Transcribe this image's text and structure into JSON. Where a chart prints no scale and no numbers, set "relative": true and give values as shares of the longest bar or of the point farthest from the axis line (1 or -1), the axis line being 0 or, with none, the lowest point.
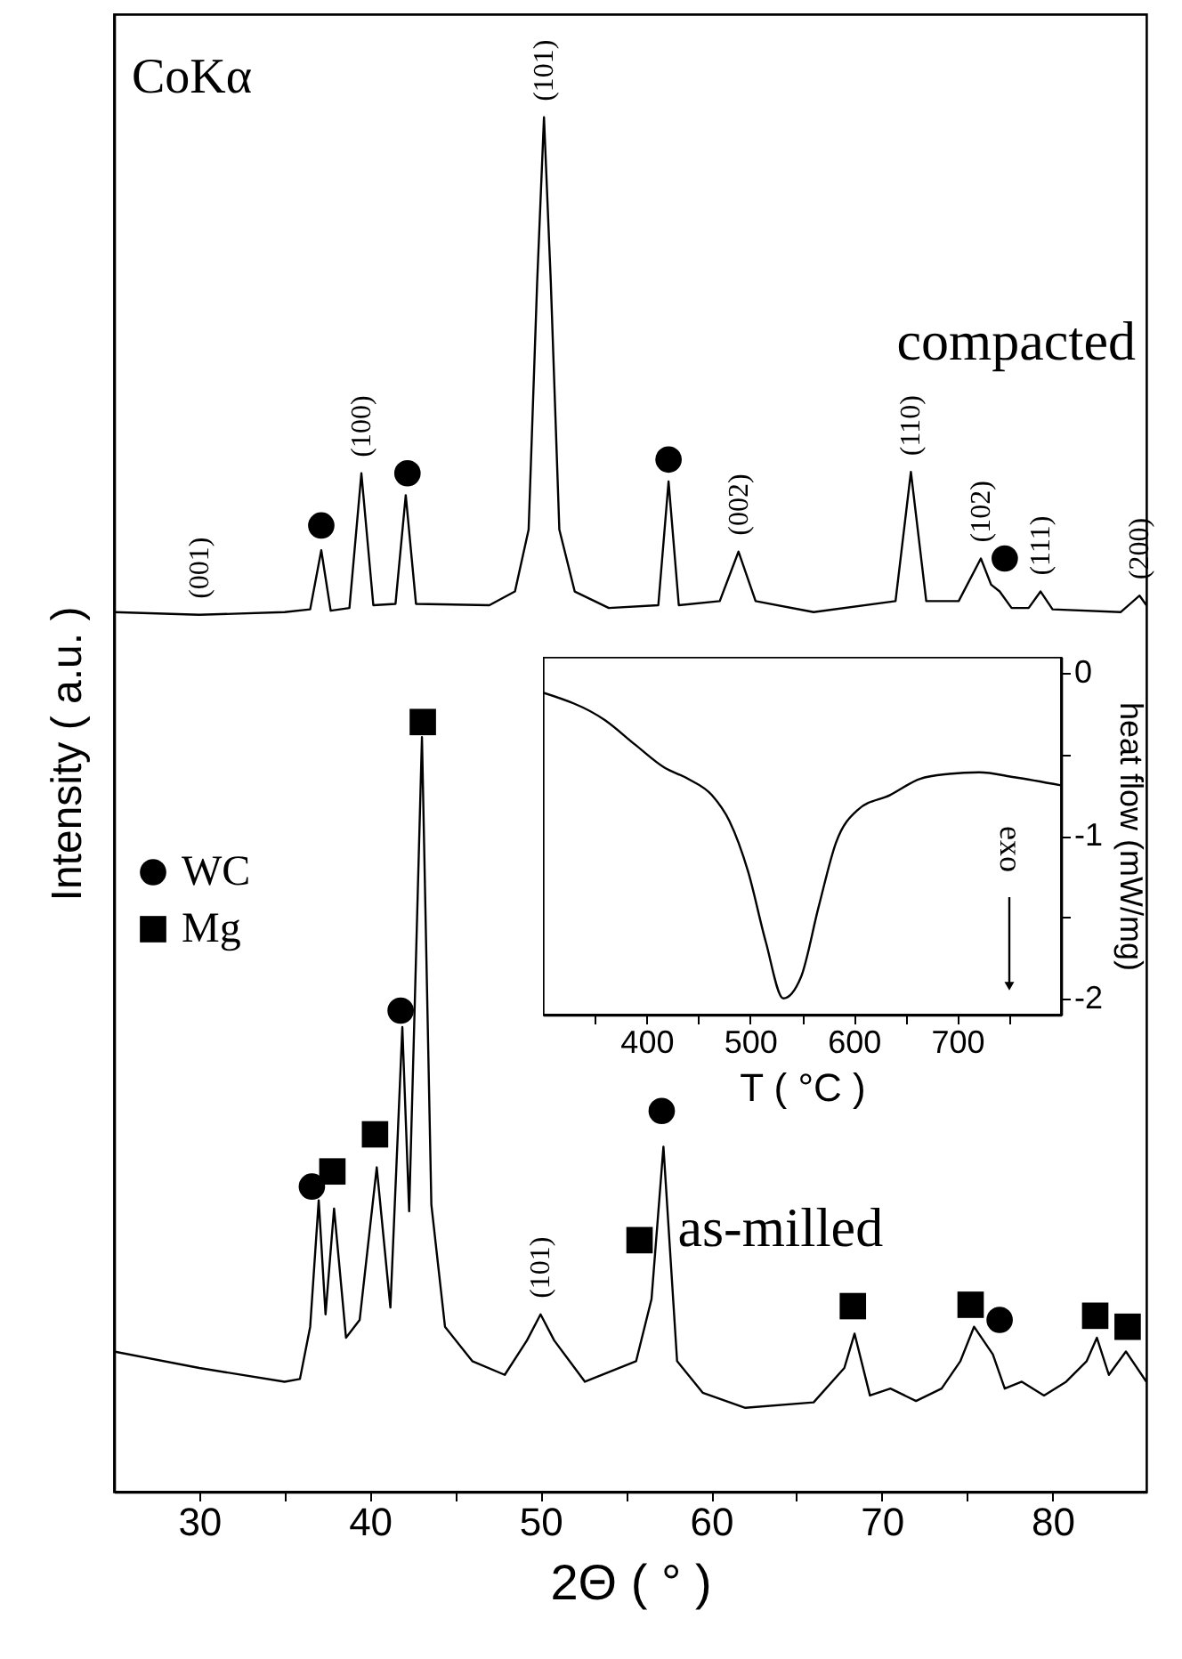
{
  "chart_data": [
    {
      "type": "line",
      "xlabel": "2Θ ( ° )",
      "ylabel": "Intensity ( a.u. )",
      "relative": true,
      "legend": "left",
      "xlim": [
        25,
        85.5
      ],
      "xticks": [
        30,
        {
          "value": 35,
          "label": null
        },
        40,
        {
          "value": 45,
          "label": null
        },
        50,
        {
          "value": 55,
          "label": null
        },
        60,
        {
          "value": 65,
          "label": null
        },
        70,
        {
          "value": 75,
          "label": null
        },
        80
      ],
      "series": [
        {
          "name": "compacted",
          "type": "line",
          "color": "#000000",
          "x": [
            25,
            30,
            35,
            36.5,
            37.15,
            37.7,
            38.8,
            39.5,
            40.2,
            41.5,
            42.1,
            42.7,
            47,
            48.5,
            49.3,
            49.8,
            50.2,
            50.6,
            51.1,
            52,
            54,
            56.9,
            57.5,
            58.1,
            60.5,
            61.6,
            62.6,
            66,
            70.8,
            71.7,
            72.6,
            74.5,
            75.8,
            76.4,
            76.9,
            77.6,
            78.6,
            79.3,
            80,
            84,
            85.1,
            85.5
          ],
          "values": [
            0.64,
            0.638,
            0.64,
            0.642,
            0.685,
            0.641,
            0.643,
            0.741,
            0.645,
            0.646,
            0.725,
            0.646,
            0.645,
            0.655,
            0.7,
            0.88,
            1,
            0.88,
            0.7,
            0.655,
            0.643,
            0.645,
            0.735,
            0.645,
            0.648,
            0.684,
            0.648,
            0.64,
            0.648,
            0.742,
            0.648,
            0.648,
            0.679,
            0.66,
            0.655,
            0.643,
            0.643,
            0.655,
            0.642,
            0.64,
            0.652,
            0.645
          ]
        },
        {
          "name": "as-milled",
          "type": "line",
          "color": "#000000",
          "x": [
            25,
            30,
            35,
            35.9,
            36.5,
            37,
            37.4,
            37.9,
            38.6,
            39.4,
            40.4,
            41.2,
            41.9,
            42.3,
            43.05,
            43.6,
            44.4,
            46,
            47.9,
            49.2,
            50,
            50.8,
            52.6,
            55.6,
            56.5,
            57.2,
            58,
            59.5,
            62,
            66,
            67.8,
            68.4,
            69.3,
            70.5,
            72,
            73.5,
            74.6,
            75.4,
            76.5,
            77.2,
            78.2,
            79.5,
            80.8,
            82,
            82.6,
            83.3,
            84.3,
            85.5
          ],
          "values": [
            0.102,
            0.09,
            0.08,
            0.082,
            0.12,
            0.212,
            0.129,
            0.206,
            0.112,
            0.125,
            0.236,
            0.134,
            0.338,
            0.204,
            0.549,
            0.209,
            0.12,
            0.095,
            0.085,
            0.11,
            0.129,
            0.11,
            0.08,
            0.095,
            0.14,
            0.251,
            0.095,
            0.072,
            0.061,
            0.065,
            0.09,
            0.115,
            0.07,
            0.075,
            0.066,
            0.075,
            0.095,
            0.12,
            0.1,
            0.075,
            0.08,
            0.07,
            0.08,
            0.095,
            0.112,
            0.085,
            0.102,
            0.08
          ]
        },
        {
          "name": "WC",
          "type": "scatter",
          "marker": "circle",
          "color": "#000000",
          "x": [
            37.15,
            42.2,
            57.5,
            77.2,
            36.6,
            41.8,
            57.1,
            76.9
          ],
          "values": [
            0.703,
            0.741,
            0.751,
            0.679,
            0.222,
            0.35,
            0.277,
            0.125
          ]
        },
        {
          "name": "Mg",
          "type": "scatter",
          "marker": "square",
          "color": "#000000",
          "x": [
            37.8,
            40.3,
            43.1,
            55.8,
            68.3,
            75.2,
            82.5,
            84.4
          ],
          "values": [
            0.233,
            0.26,
            0.56,
            0.183,
            0.135,
            0.136,
            0.128,
            0.12
          ]
        }
      ],
      "annotations": [
        "CoKα",
        {
          "text": "(001)",
          "x": 30,
          "y": 0.638
        },
        {
          "text": "(100)",
          "x": 39.5,
          "y": 0.741
        },
        {
          "text": "(101)",
          "x": 50.2,
          "y": 1
        },
        {
          "text": "(002)",
          "x": 61.6,
          "y": 0.684
        },
        {
          "text": "(110)",
          "x": 71.7,
          "y": 0.742
        },
        {
          "text": "(102)",
          "x": 75.8,
          "y": 0.679
        },
        {
          "text": "(111)",
          "x": 79.3,
          "y": 0.655
        },
        {
          "text": "(200)",
          "x": 85.1,
          "y": 0.652
        },
        {
          "text": "(101)",
          "x": 50,
          "y": 0.129
        }
      ]
    },
    {
      "type": "line",
      "xlabel": "T ( °C )",
      "ylabel": "heat flow (mW/mg)",
      "xlim": [
        300,
        800
      ],
      "ylim": [
        -2.1,
        0.1
      ],
      "xticks": [
        {
          "value": 350,
          "label": null
        },
        400,
        {
          "value": 450,
          "label": null
        },
        500,
        {
          "value": 550,
          "label": null
        },
        600,
        {
          "value": 650,
          "label": null
        },
        700,
        {
          "value": 750,
          "label": null
        }
      ],
      "yticks": [
        {
          "value": 0,
          "label": "0"
        },
        {
          "value": -0.5,
          "label": null
        },
        {
          "value": -1,
          "label": "-1"
        },
        {
          "value": -1.5,
          "label": null
        },
        {
          "value": -2,
          "label": "-2"
        }
      ],
      "series": [
        {
          "color": "#000000",
          "x": [
            300,
            360,
            389,
            417,
            440,
            463,
            480,
            498,
            515,
            532,
            549,
            566,
            583,
            604,
            635,
            664,
            692,
            721,
            755,
            800
          ],
          "values": [
            -0.12,
            -0.29,
            -0.44,
            -0.58,
            -0.65,
            -0.75,
            -0.91,
            -1.22,
            -1.65,
            -2.0,
            -1.87,
            -1.44,
            -1.04,
            -0.84,
            -0.75,
            -0.65,
            -0.62,
            -0.61,
            -0.64,
            -0.69
          ]
        }
      ],
      "annotations": [
        "exo"
      ]
    }
  ]
}
